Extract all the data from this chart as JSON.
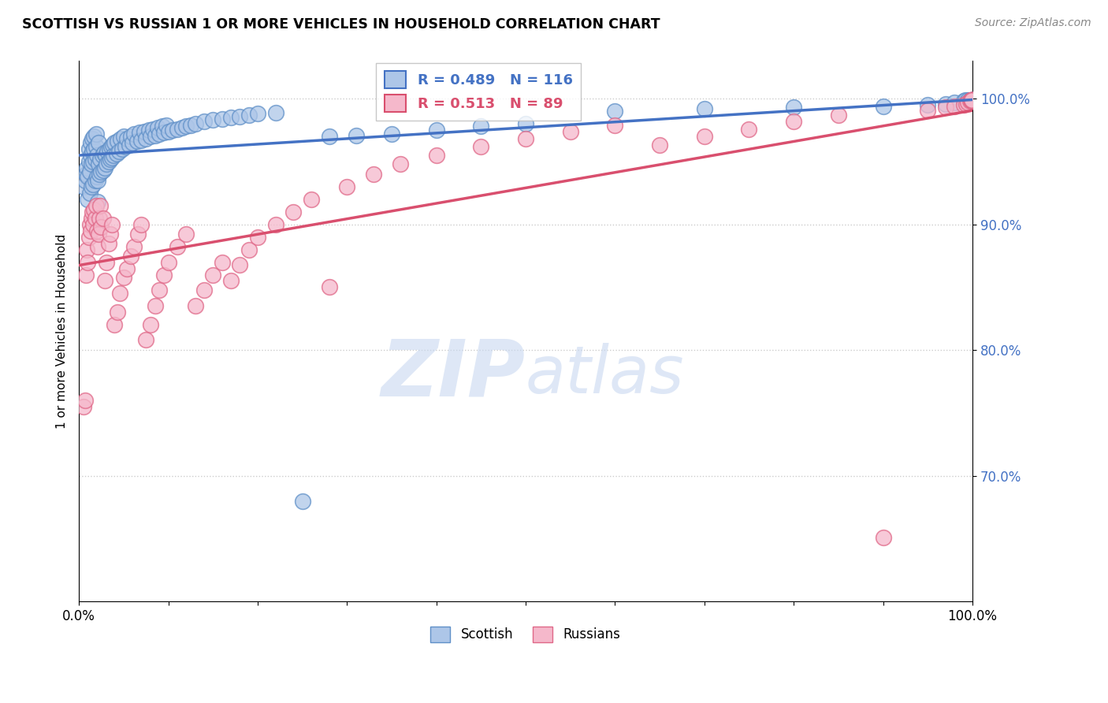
{
  "title": "SCOTTISH VS RUSSIAN 1 OR MORE VEHICLES IN HOUSEHOLD CORRELATION CHART",
  "source_text": "Source: ZipAtlas.com",
  "ylabel": "1 or more Vehicles in Household",
  "xlim": [
    0.0,
    1.0
  ],
  "ylim": [
    0.6,
    1.03
  ],
  "yticks": [
    0.7,
    0.8,
    0.9,
    1.0
  ],
  "ytick_labels": [
    "70.0%",
    "80.0%",
    "90.0%",
    "100.0%"
  ],
  "xticks": [
    0.0,
    0.1,
    0.2,
    0.3,
    0.4,
    0.5,
    0.6,
    0.7,
    0.8,
    0.9,
    1.0
  ],
  "xtick_labels": [
    "0.0%",
    "",
    "",
    "",
    "",
    "",
    "",
    "",
    "",
    "",
    "100.0%"
  ],
  "scottish_color": "#adc6e8",
  "russian_color": "#f5b8cb",
  "scottish_edge": "#6090c8",
  "russian_edge": "#e06888",
  "line_scottish": "#4472c4",
  "line_russian": "#d94f6e",
  "r_scottish": 0.489,
  "n_scottish": 116,
  "r_russian": 0.513,
  "n_russian": 89,
  "legend_scottish": "Scottish",
  "legend_russian": "Russians",
  "watermark_zip": "ZIP",
  "watermark_atlas": "atlas",
  "watermark_color_zip": "#c5d5ee",
  "watermark_color_atlas": "#c8d8f0",
  "scottish_x": [
    0.005,
    0.007,
    0.008,
    0.009,
    0.01,
    0.01,
    0.011,
    0.011,
    0.012,
    0.012,
    0.013,
    0.013,
    0.014,
    0.014,
    0.015,
    0.015,
    0.016,
    0.016,
    0.017,
    0.017,
    0.018,
    0.018,
    0.019,
    0.019,
    0.02,
    0.02,
    0.021,
    0.021,
    0.022,
    0.022,
    0.023,
    0.024,
    0.025,
    0.026,
    0.027,
    0.028,
    0.029,
    0.03,
    0.031,
    0.032,
    0.033,
    0.034,
    0.035,
    0.036,
    0.037,
    0.038,
    0.039,
    0.04,
    0.042,
    0.043,
    0.045,
    0.047,
    0.048,
    0.05,
    0.052,
    0.054,
    0.056,
    0.058,
    0.06,
    0.062,
    0.065,
    0.068,
    0.07,
    0.073,
    0.075,
    0.078,
    0.08,
    0.083,
    0.085,
    0.088,
    0.09,
    0.093,
    0.095,
    0.098,
    0.1,
    0.105,
    0.11,
    0.115,
    0.12,
    0.125,
    0.13,
    0.14,
    0.15,
    0.16,
    0.17,
    0.18,
    0.19,
    0.2,
    0.22,
    0.25,
    0.28,
    0.31,
    0.35,
    0.4,
    0.45,
    0.5,
    0.6,
    0.7,
    0.8,
    0.9,
    0.95,
    0.97,
    0.98,
    0.99,
    0.992,
    0.995,
    0.997,
    0.998,
    0.999,
    0.999,
    0.999,
    0.999,
    0.999,
    0.999,
    0.999,
    0.999
  ],
  "scottish_y": [
    0.93,
    0.935,
    0.94,
    0.945,
    0.92,
    0.938,
    0.95,
    0.96,
    0.925,
    0.942,
    0.955,
    0.965,
    0.93,
    0.948,
    0.958,
    0.968,
    0.932,
    0.95,
    0.96,
    0.97,
    0.935,
    0.952,
    0.962,
    0.972,
    0.938,
    0.955,
    0.918,
    0.935,
    0.948,
    0.965,
    0.94,
    0.952,
    0.942,
    0.955,
    0.943,
    0.957,
    0.945,
    0.955,
    0.948,
    0.958,
    0.95,
    0.96,
    0.952,
    0.962,
    0.953,
    0.963,
    0.955,
    0.965,
    0.956,
    0.966,
    0.958,
    0.968,
    0.96,
    0.97,
    0.962,
    0.968,
    0.963,
    0.97,
    0.965,
    0.972,
    0.966,
    0.973,
    0.967,
    0.974,
    0.968,
    0.975,
    0.97,
    0.976,
    0.971,
    0.977,
    0.972,
    0.978,
    0.973,
    0.979,
    0.974,
    0.975,
    0.976,
    0.977,
    0.978,
    0.979,
    0.98,
    0.982,
    0.983,
    0.984,
    0.985,
    0.986,
    0.987,
    0.988,
    0.989,
    0.68,
    0.97,
    0.971,
    0.972,
    0.975,
    0.978,
    0.98,
    0.99,
    0.992,
    0.993,
    0.994,
    0.995,
    0.996,
    0.997,
    0.998,
    0.999,
    0.999,
    0.999,
    0.999,
    0.999,
    0.999,
    0.999,
    0.999,
    0.999,
    0.999,
    0.999,
    0.999
  ],
  "russian_x": [
    0.005,
    0.007,
    0.008,
    0.009,
    0.01,
    0.011,
    0.012,
    0.013,
    0.014,
    0.015,
    0.016,
    0.017,
    0.018,
    0.019,
    0.02,
    0.021,
    0.022,
    0.023,
    0.024,
    0.025,
    0.027,
    0.029,
    0.031,
    0.033,
    0.035,
    0.037,
    0.04,
    0.043,
    0.046,
    0.05,
    0.054,
    0.058,
    0.062,
    0.066,
    0.07,
    0.075,
    0.08,
    0.085,
    0.09,
    0.095,
    0.1,
    0.11,
    0.12,
    0.13,
    0.14,
    0.15,
    0.16,
    0.17,
    0.18,
    0.19,
    0.2,
    0.22,
    0.24,
    0.26,
    0.28,
    0.3,
    0.33,
    0.36,
    0.4,
    0.45,
    0.5,
    0.55,
    0.6,
    0.65,
    0.7,
    0.75,
    0.8,
    0.85,
    0.9,
    0.95,
    0.97,
    0.98,
    0.99,
    0.993,
    0.995,
    0.997,
    0.998,
    0.999,
    0.999,
    0.999,
    0.999,
    0.999,
    0.999,
    0.999,
    0.999,
    0.999,
    0.999,
    0.999,
    0.999
  ],
  "russian_y": [
    0.755,
    0.76,
    0.86,
    0.88,
    0.87,
    0.89,
    0.9,
    0.895,
    0.905,
    0.91,
    0.9,
    0.912,
    0.905,
    0.915,
    0.895,
    0.882,
    0.892,
    0.905,
    0.915,
    0.898,
    0.905,
    0.855,
    0.87,
    0.885,
    0.892,
    0.9,
    0.82,
    0.83,
    0.845,
    0.858,
    0.865,
    0.875,
    0.882,
    0.892,
    0.9,
    0.808,
    0.82,
    0.835,
    0.848,
    0.86,
    0.87,
    0.882,
    0.892,
    0.835,
    0.848,
    0.86,
    0.87,
    0.855,
    0.868,
    0.88,
    0.89,
    0.9,
    0.91,
    0.92,
    0.85,
    0.93,
    0.94,
    0.948,
    0.955,
    0.962,
    0.968,
    0.974,
    0.979,
    0.963,
    0.97,
    0.976,
    0.982,
    0.987,
    0.651,
    0.991,
    0.993,
    0.994,
    0.995,
    0.996,
    0.997,
    0.998,
    0.999,
    0.999,
    0.999,
    0.999,
    0.999,
    0.999,
    0.999,
    0.999,
    0.999,
    0.999,
    0.999,
    0.999,
    0.999
  ]
}
